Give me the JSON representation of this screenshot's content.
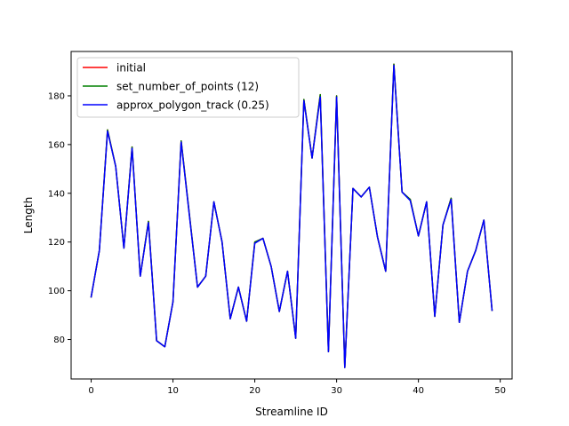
{
  "chart_data": {
    "type": "line",
    "xlabel": "Streamline ID",
    "ylabel": "Length",
    "xlim": [
      -2.45,
      51.45
    ],
    "ylim": [
      63.8,
      198.2
    ],
    "xticks": [
      0,
      10,
      20,
      30,
      40,
      50
    ],
    "yticks": [
      80,
      100,
      120,
      140,
      160,
      180
    ],
    "grid": false,
    "legend_position": "top-left",
    "x": [
      0,
      1,
      2,
      3,
      4,
      5,
      6,
      7,
      8,
      9,
      10,
      11,
      12,
      13,
      14,
      15,
      16,
      17,
      18,
      19,
      20,
      21,
      22,
      23,
      24,
      25,
      26,
      27,
      28,
      29,
      30,
      31,
      32,
      33,
      34,
      35,
      36,
      37,
      38,
      39,
      40,
      41,
      42,
      43,
      44,
      45,
      46,
      47,
      48,
      49
    ],
    "series": [
      {
        "name": "initial",
        "color": "#ff0000",
        "values": [
          97.5,
          116.5,
          166.0,
          151.0,
          117.5,
          159.0,
          106.0,
          128.5,
          79.5,
          77.0,
          95.5,
          161.5,
          131.5,
          101.5,
          106.0,
          136.5,
          120.0,
          88.5,
          101.5,
          87.5,
          120.0,
          121.5,
          110.0,
          91.5,
          108.0,
          80.5,
          178.5,
          154.5,
          180.5,
          75.0,
          180.0,
          68.5,
          142.0,
          138.5,
          142.5,
          122.0,
          108.0,
          193.0,
          140.5,
          137.5,
          122.5,
          136.5,
          89.5,
          127.0,
          138.0,
          87.0,
          108.0,
          116.5,
          129.0,
          92.0
        ]
      },
      {
        "name": "set_number_of_points (12)",
        "color": "#008000",
        "values": [
          97.5,
          116.5,
          166.0,
          151.0,
          117.5,
          159.0,
          106.0,
          128.5,
          79.5,
          77.0,
          95.5,
          161.5,
          131.5,
          101.5,
          106.0,
          136.5,
          120.0,
          88.5,
          101.5,
          87.5,
          120.0,
          121.5,
          110.0,
          91.5,
          108.0,
          80.5,
          178.5,
          154.5,
          180.5,
          75.0,
          180.0,
          68.5,
          142.0,
          138.5,
          142.5,
          122.0,
          108.0,
          193.0,
          140.5,
          137.5,
          122.5,
          136.5,
          89.5,
          127.0,
          138.0,
          87.0,
          108.0,
          116.5,
          129.0,
          92.0
        ]
      },
      {
        "name": "approx_polygon_track (0.25)",
        "color": "#0000ff",
        "values": [
          97.5,
          116.5,
          165.5,
          151.0,
          117.5,
          158.5,
          106.0,
          128.0,
          79.5,
          77.0,
          95.5,
          161.0,
          131.0,
          101.5,
          106.0,
          136.5,
          120.0,
          88.5,
          101.5,
          87.5,
          119.5,
          121.5,
          110.0,
          91.5,
          108.0,
          80.5,
          178.0,
          154.5,
          179.5,
          75.0,
          179.5,
          68.5,
          142.0,
          138.5,
          142.5,
          122.0,
          108.0,
          192.5,
          140.5,
          137.0,
          122.5,
          136.5,
          89.5,
          127.0,
          137.5,
          87.0,
          108.0,
          116.5,
          129.0,
          92.0
        ]
      }
    ]
  }
}
